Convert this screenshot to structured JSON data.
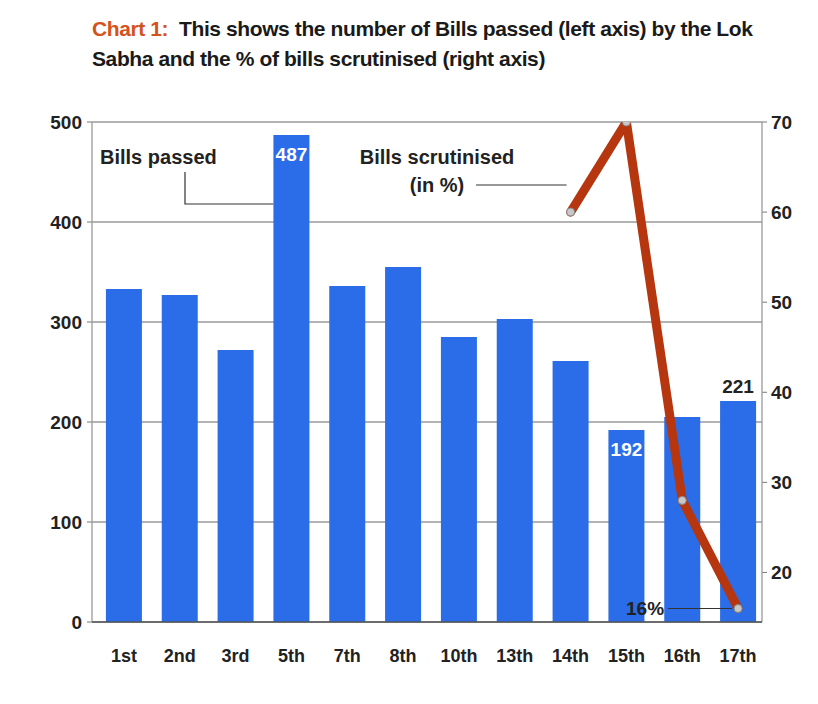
{
  "chart_data": {
    "type": "bar",
    "title": "Chart 1:",
    "subtitle": "This shows the number of Bills passed (left axis) by the Lok Sabha and the % of bills scrutinised (right axis)",
    "categories": [
      "1st",
      "2nd",
      "3rd",
      "5th",
      "7th",
      "8th",
      "10th",
      "13th",
      "14th",
      "15th",
      "16th",
      "17th"
    ],
    "series": [
      {
        "name": "Bills passed",
        "type": "bar",
        "color": "#2b6de8",
        "values": [
          333,
          327,
          272,
          487,
          336,
          355,
          285,
          303,
          261,
          192,
          205,
          221
        ],
        "value_labels": [
          null,
          null,
          null,
          "487",
          null,
          null,
          null,
          null,
          null,
          "192",
          null,
          "221"
        ]
      },
      {
        "name": "Bills scrutinised (in %)",
        "type": "line",
        "axis": "y2",
        "color": "#b5360f",
        "marker": "circle",
        "values": [
          null,
          null,
          null,
          null,
          null,
          null,
          null,
          null,
          60,
          70,
          28,
          16
        ],
        "value_labels": [
          null,
          null,
          null,
          null,
          null,
          null,
          null,
          null,
          null,
          null,
          null,
          "16%"
        ]
      }
    ],
    "ylim": [
      0,
      500
    ],
    "yticks": [
      0,
      100,
      200,
      300,
      400,
      500
    ],
    "y2lim": [
      14.5,
      70
    ],
    "y2ticks": [
      20,
      30,
      40,
      50,
      60,
      70
    ],
    "grid": true,
    "data_labels": true
  }
}
